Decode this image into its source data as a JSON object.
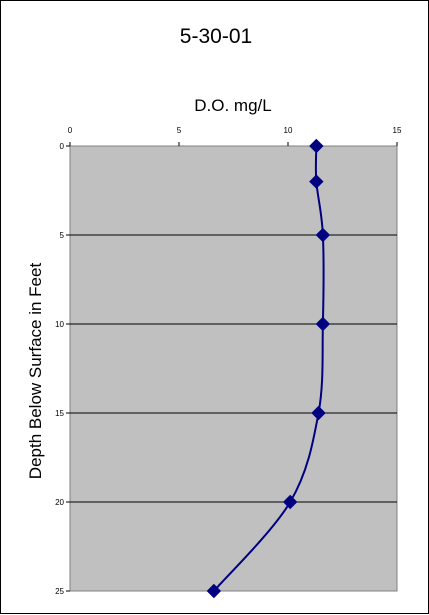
{
  "chart_data": {
    "type": "line",
    "title": "5-30-01",
    "xlabel": "D.O. mg/L",
    "ylabel": "Depth Below Surface in Feet",
    "xlim": [
      0,
      15
    ],
    "ylim": [
      0,
      25
    ],
    "y_inverted": true,
    "x_axis_position": "top",
    "x_ticks": [
      "0",
      "5",
      "10",
      "15"
    ],
    "y_ticks": [
      "0",
      "5",
      "10",
      "15",
      "20",
      "25"
    ],
    "grid": "horizontal",
    "plot_background": "#c0c0c0",
    "series": [
      {
        "color": "#000080",
        "marker": "diamond",
        "smooth": true,
        "x": [
          11.3,
          11.3,
          11.6,
          11.6,
          11.4,
          10.1,
          6.6
        ],
        "y": [
          0,
          2,
          5,
          10,
          15,
          20,
          25
        ]
      }
    ]
  }
}
